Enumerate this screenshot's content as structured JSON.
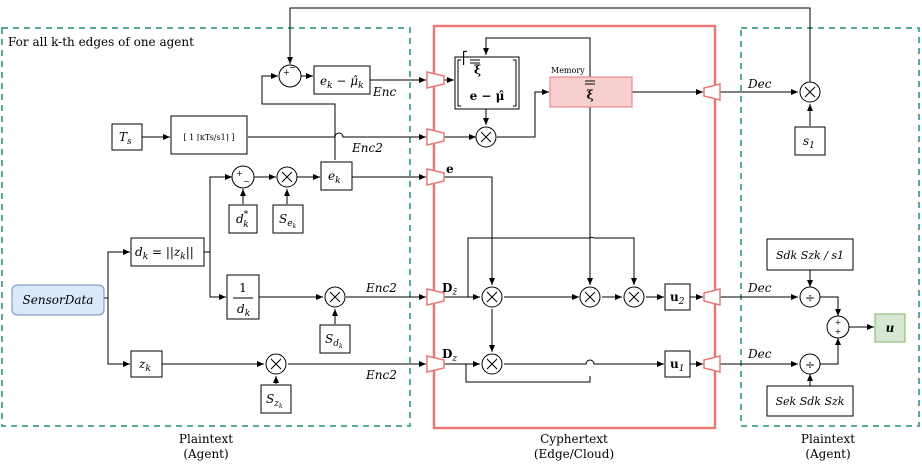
{
  "regions": {
    "left_note": "For all k-th edges of one agent",
    "left_caption_1": "Plaintext",
    "left_caption_2": "(Agent)",
    "middle_caption_1": "Cyphertext",
    "middle_caption_2": "(Edge/Cloud)",
    "right_caption_1": "Plaintext",
    "right_caption_2": "(Agent)"
  },
  "blocks": {
    "sensor_data": "SensorData",
    "ts": "T",
    "ts_sub": "s",
    "quantize": "[ 1 ⌈κTs/s1⌉ ]",
    "ek_minus_mu": "e",
    "ek_sub": "k",
    "minus_mu": " − μ̂",
    "mu_sub": "k",
    "ek": "e",
    "ek2_sub": "k",
    "dk_star": "d",
    "dk_star_sup": "*",
    "dk_star_sub": "k",
    "sek": "S",
    "sek_sub": "e",
    "sek_subsub": "k",
    "dk_norm": "d",
    "dk_norm_sub": "k",
    "dk_norm_rest": " = ||z",
    "dk_norm_sub2": "k",
    "dk_norm_end": "||",
    "inv_dk_num": "1",
    "inv_dk_den": "d",
    "inv_dk_sub": "k",
    "sdk": "S",
    "sdk_sub": "d",
    "sdk_subsub": "k",
    "zk": "z",
    "zk_sub": "k",
    "szk": "S",
    "szk_sub": "z",
    "szk_subsub": "k",
    "xi_top": "ξ",
    "xi_bottom": "e − μ̂",
    "memory_label": "Memory",
    "memory_xi": "ξ",
    "u2": "u",
    "u2_sub": "2",
    "u1": "u",
    "u1_sub": "1",
    "s1": "s",
    "s1_sub": "1",
    "ratio_top": "S",
    "ratio_top_text": "Sdk Szk / s1",
    "ratio_bottom_text": "Sek Sdk Szk",
    "u_out": "u"
  },
  "labels": {
    "enc": "Enc",
    "enc2_a": "Enc2",
    "enc2_b": "Enc2",
    "enc2_c": "Enc2",
    "e_bold": "e",
    "dz_bar": "D",
    "dz_bar_sub": "z̄",
    "dz": "D",
    "dz_sub": "z",
    "dec_a": "Dec",
    "dec_b": "Dec",
    "dec_c": "Dec",
    "sum_plus": "+",
    "sum_minus": "−",
    "sum2_plus": "+",
    "sum2_minus": "−",
    "div": "÷",
    "sum3_top": "+",
    "sum3_bottom": "+"
  },
  "colors": {
    "dashed_region": "#5aab96",
    "cloud_region": "#e77a78",
    "memory_fill": "#f8cfcf",
    "sensor_fill": "#dae8fc",
    "sensor_stroke": "#6c8ebf",
    "output_fill": "#d5e8d4",
    "output_stroke": "#82b366"
  }
}
